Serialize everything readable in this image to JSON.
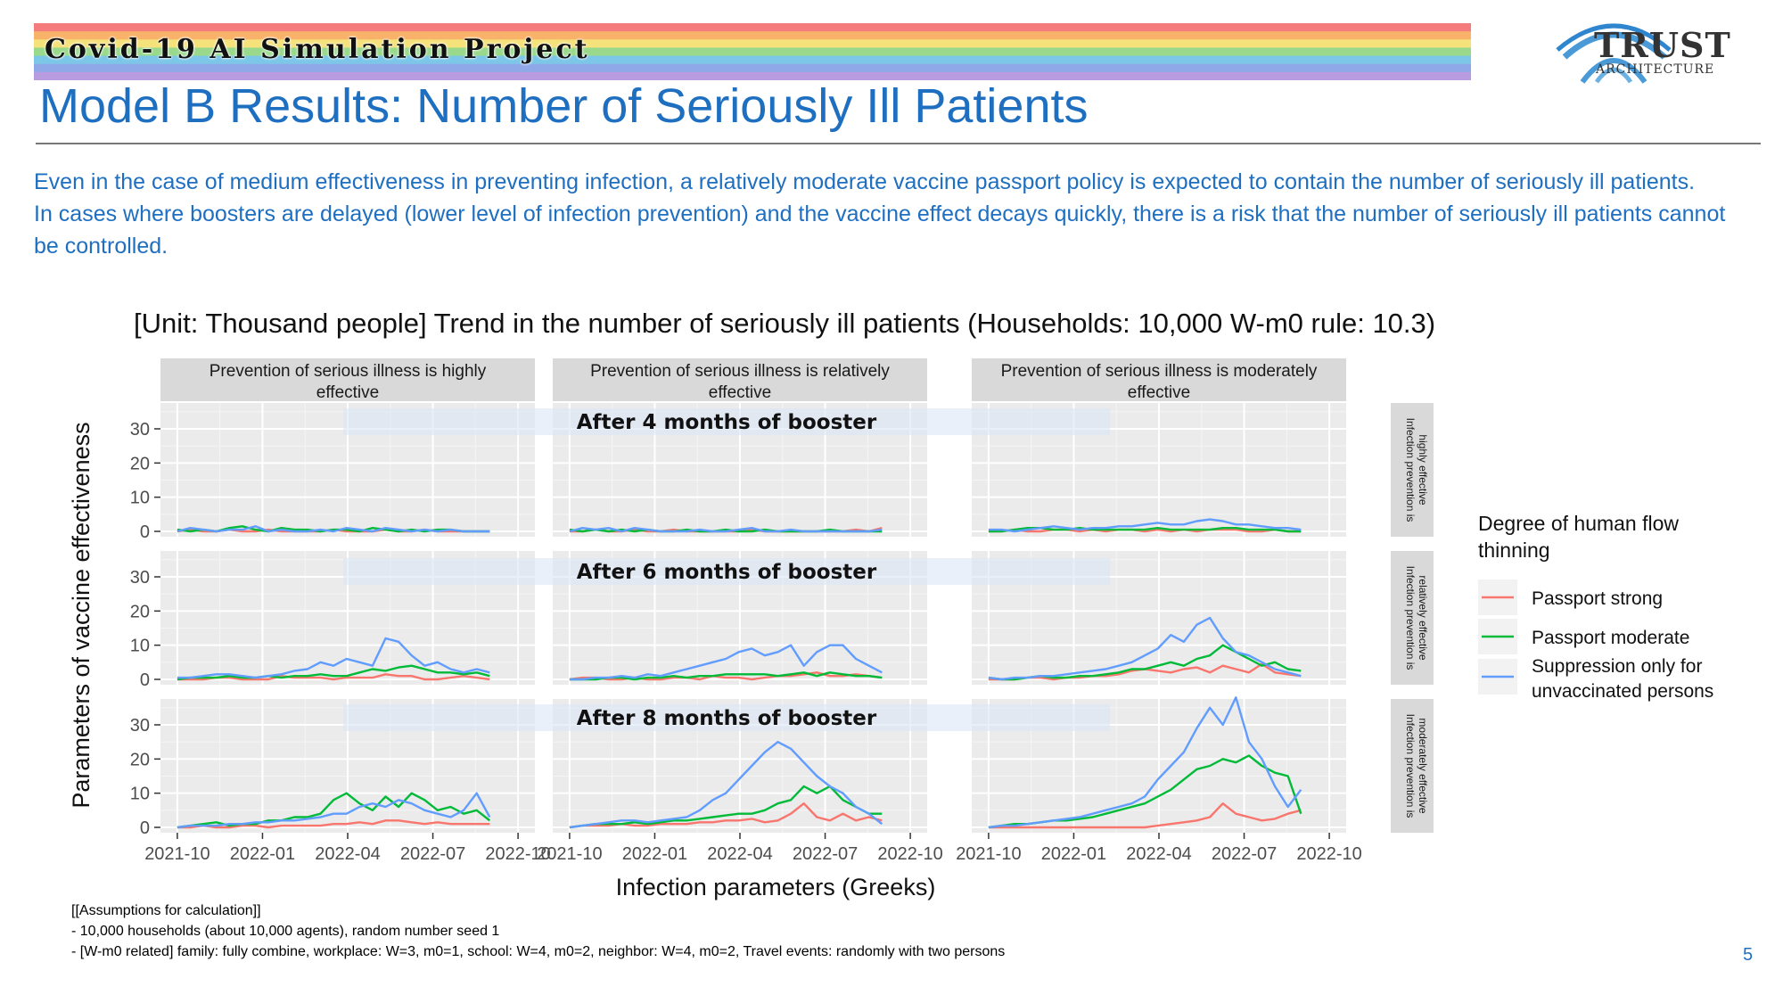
{
  "header": {
    "banner_text": "Covid-19 AI Simulation Project",
    "title": "Model B Results: Number of Seriously Ill Patients",
    "logo_text": "TRUST",
    "logo_subtext": "ARCHITECTURE",
    "logo_icon": "arch-bridge-icon",
    "banner_colors": [
      "#f47c7c",
      "#f8b26a",
      "#f5e27a",
      "#9ad98c",
      "#7cc6e8",
      "#8fa8e8",
      "#b99be0"
    ]
  },
  "intro": {
    "line1": "Even in the case of medium effectiveness in preventing infection, a relatively moderate vaccine passport policy is expected to contain the number of seriously ill patients.",
    "line2": "In cases where boosters are delayed (lower level of infection prevention) and the vaccine effect decays quickly, there is a risk that the number of seriously ill patients cannot be controlled."
  },
  "chart_title": "[Unit: Thousand people] Trend in the number of seriously ill patients (Households: 10,000 W-m0 rule: 10.3)",
  "chart_data": {
    "type": "line",
    "xlabel": "Infection parameters (Greeks)",
    "ylabel": "Parameters of vaccine effectiveness",
    "x_ticks": [
      "2021-10",
      "2022-01",
      "2022-04",
      "2022-07",
      "2022-10"
    ],
    "x_range": [
      "2021-10",
      "2022-10"
    ],
    "ylim": [
      0,
      36
    ],
    "y_ticks": [
      0,
      10,
      20,
      30
    ],
    "column_headers": [
      "Prevention of serious illness is highly effective",
      "Prevention of serious illness is relatively effective",
      "Prevention of serious illness is moderately effective"
    ],
    "row_headers": [
      "Infection prevention is highly effective",
      "Infection prevention is relatively effective",
      "Infection prevention is moderately effective"
    ],
    "row_overlays": [
      "After 4 months of booster",
      "After 6 months of booster",
      "After 8 months of booster"
    ],
    "legend_title": "Degree of human flow thinning",
    "legend_position": "right",
    "grid": true,
    "series": [
      {
        "name": "Passport strong",
        "color": "#f8766d"
      },
      {
        "name": "Passport moderate",
        "color": "#00ba38"
      },
      {
        "name": "Suppression only for unvaccinated persons",
        "color": "#619cff"
      }
    ],
    "panels": [
      [
        {
          "start": "2021-10",
          "end": "2022-09",
          "values": [
            [
              0,
              0.5,
              0,
              0,
              0.5,
              0,
              0,
              0.5,
              0,
              0,
              0,
              0,
              0.5,
              0,
              0,
              0,
              0.5,
              0,
              0,
              0.5,
              0,
              0,
              0,
              0,
              0
            ],
            [
              0.5,
              0,
              0.5,
              0,
              1,
              1.5,
              0.5,
              0,
              1,
              0.5,
              0.5,
              0,
              0.5,
              0.5,
              0,
              1,
              0.5,
              0,
              0.5,
              0,
              0.5,
              0.5,
              0,
              0,
              0
            ],
            [
              0,
              1,
              0.5,
              0,
              0.5,
              0.5,
              1.5,
              0,
              0.5,
              0,
              0,
              0.5,
              0,
              1,
              0.5,
              0,
              1,
              0.5,
              0,
              0.5,
              0,
              0.5,
              0,
              0,
              0
            ]
          ]
        },
        {
          "start": "2021-10",
          "end": "2022-09",
          "values": [
            [
              0,
              0,
              0.5,
              0,
              0,
              0.5,
              0,
              0,
              0.5,
              0,
              0,
              0,
              0,
              0,
              0.5,
              0,
              0,
              0,
              0,
              0,
              0,
              0,
              0.5,
              0,
              1
            ],
            [
              0.5,
              0,
              0.5,
              0,
              0.5,
              0,
              0.5,
              0,
              0,
              0.5,
              0,
              0,
              0.5,
              0,
              0,
              0.5,
              0,
              0,
              0,
              0,
              0.5,
              0,
              0,
              0,
              0
            ],
            [
              0,
              1,
              0.5,
              1,
              0,
              1,
              0.5,
              0,
              0,
              0,
              0.5,
              0,
              0,
              0.5,
              1,
              0,
              0,
              0.5,
              0,
              0,
              0,
              0,
              0,
              0,
              0.5
            ]
          ]
        },
        {
          "start": "2021-10",
          "end": "2022-09",
          "values": [
            [
              0,
              0,
              0.5,
              0,
              0,
              0.5,
              0.5,
              0,
              0.5,
              0,
              0.5,
              0.5,
              0,
              0.5,
              0,
              0.5,
              0,
              0.5,
              0.5,
              0.5,
              0,
              0,
              0.5,
              0,
              0
            ],
            [
              0,
              0,
              0.5,
              1,
              1,
              0.5,
              0.5,
              1,
              0.5,
              0.5,
              0.5,
              0.5,
              0.5,
              1,
              0.5,
              0.5,
              0.5,
              0.5,
              1,
              1,
              0.5,
              0.5,
              0.5,
              0,
              0
            ],
            [
              0.5,
              0.5,
              0,
              0.5,
              1,
              1.5,
              1,
              0.5,
              1,
              1,
              1.5,
              1.5,
              2,
              2.5,
              2,
              2,
              3,
              3.5,
              3,
              2,
              2,
              1.5,
              1,
              1,
              0.5
            ]
          ]
        }
      ],
      [
        {
          "start": "2021-10",
          "end": "2022-09",
          "values": [
            [
              0,
              0,
              0,
              0.5,
              0.5,
              0,
              0,
              0,
              1,
              0.5,
              0.5,
              0.5,
              0,
              0.5,
              0.5,
              0.5,
              1.5,
              1,
              1,
              0,
              0,
              0.5,
              1,
              0.5,
              0
            ],
            [
              0,
              0.5,
              0.5,
              0.5,
              1,
              0.5,
              0.5,
              1,
              0.5,
              1,
              1,
              1.5,
              1,
              1,
              2,
              3,
              2.5,
              3.5,
              4,
              3,
              2,
              2,
              1.5,
              2,
              1
            ],
            [
              0.5,
              0.5,
              1,
              1.5,
              1.5,
              1,
              0.5,
              1,
              1.5,
              2.5,
              3,
              5,
              4,
              6,
              5,
              4,
              12,
              11,
              7,
              4,
              5,
              3,
              2,
              3,
              2
            ]
          ]
        },
        {
          "start": "2021-10",
          "end": "2022-09",
          "values": [
            [
              0,
              0.5,
              0.5,
              0,
              0,
              0.5,
              0,
              0,
              0.5,
              0.5,
              0,
              1,
              0.5,
              0.5,
              0,
              0.5,
              1,
              1,
              1.5,
              2,
              1,
              1,
              1.5,
              1,
              0.5
            ],
            [
              0,
              0,
              0,
              0.5,
              0.5,
              0,
              0.5,
              0.5,
              1,
              0.5,
              1,
              1,
              1.5,
              1.5,
              1.5,
              1.5,
              1,
              1.5,
              2,
              1,
              2,
              1.5,
              1,
              1,
              0.5
            ],
            [
              0,
              0,
              0.5,
              0.5,
              1,
              0.5,
              1.5,
              1,
              2,
              3,
              4,
              5,
              6,
              8,
              9,
              7,
              8,
              10,
              4,
              8,
              10,
              10,
              6,
              4,
              2
            ]
          ]
        },
        {
          "start": "2021-10",
          "end": "2022-09",
          "values": [
            [
              0,
              0,
              0,
              0.5,
              0.5,
              0,
              0.5,
              0.5,
              1,
              1,
              1.5,
              2.5,
              3,
              2.5,
              2,
              3,
              3.5,
              2,
              4,
              3,
              2,
              4.5,
              2,
              1.5,
              1
            ],
            [
              0.5,
              0,
              0,
              0.5,
              1,
              0.5,
              0.5,
              1,
              1,
              1.5,
              2,
              3,
              3,
              4,
              5,
              4,
              6,
              7,
              10,
              8,
              6,
              4,
              5,
              3,
              2.5
            ],
            [
              0.5,
              0,
              0.5,
              0.5,
              1,
              1,
              1.5,
              2,
              2.5,
              3,
              4,
              5,
              7,
              9,
              13,
              11,
              16,
              18,
              12,
              8,
              7,
              5,
              3,
              2,
              1
            ]
          ]
        }
      ],
      [
        {
          "start": "2021-10",
          "end": "2022-09",
          "values": [
            [
              0,
              0,
              0.5,
              0,
              0,
              0.5,
              0.5,
              0,
              0.5,
              0.5,
              0.5,
              0.5,
              1,
              1,
              1.5,
              1,
              2,
              2,
              1.5,
              1,
              1.5,
              1,
              1,
              1,
              1
            ],
            [
              0,
              0.5,
              1,
              1.5,
              0.5,
              1,
              1,
              2,
              2,
              3,
              3,
              4,
              8,
              10,
              7,
              5,
              9,
              6,
              10,
              8,
              5,
              6,
              4,
              5,
              2
            ],
            [
              0,
              0.5,
              0.5,
              0.5,
              1,
              1,
              1.5,
              1.5,
              2,
              2,
              2.5,
              3,
              4,
              4,
              6,
              7,
              6,
              8,
              7,
              5,
              4,
              3,
              5,
              10,
              3
            ]
          ]
        },
        {
          "start": "2021-10",
          "end": "2022-09",
          "values": [
            [
              0,
              0.5,
              0.5,
              0.5,
              1,
              0.5,
              0.5,
              1,
              1,
              1,
              1.5,
              1.5,
              2,
              2,
              2.5,
              1.5,
              2,
              4,
              7,
              3,
              2,
              4,
              2,
              3,
              2
            ],
            [
              0,
              0.5,
              1,
              1,
              1,
              1.5,
              1,
              1.5,
              2,
              2,
              2.5,
              3,
              3.5,
              4,
              4,
              5,
              7,
              8,
              12,
              10,
              12,
              8,
              6,
              4,
              4
            ],
            [
              0,
              0.5,
              1,
              1.5,
              2,
              2,
              1.5,
              2,
              2.5,
              3,
              5,
              8,
              10,
              14,
              18,
              22,
              25,
              23,
              19,
              15,
              12,
              10,
              6,
              4,
              1
            ]
          ]
        },
        {
          "start": "2021-10",
          "end": "2022-09",
          "values": [
            [
              0,
              0,
              0,
              0,
              0,
              0,
              0,
              0,
              0,
              0,
              0,
              0,
              0,
              0.5,
              1,
              1.5,
              2,
              3,
              7,
              4,
              3,
              2,
              2.5,
              4,
              5
            ],
            [
              0,
              0.5,
              1,
              1,
              1.5,
              2,
              2,
              2.5,
              3,
              4,
              5,
              6,
              7,
              9,
              11,
              14,
              17,
              18,
              20,
              19,
              21,
              18,
              16,
              15,
              4
            ],
            [
              0,
              0.5,
              0.5,
              1,
              1.5,
              2,
              2.5,
              3,
              4,
              5,
              6,
              7,
              9,
              14,
              18,
              22,
              29,
              35,
              30,
              38,
              25,
              20,
              12,
              6,
              11
            ]
          ]
        }
      ]
    ]
  },
  "assumptions": {
    "heading": "[[Assumptions for calculation]]",
    "line1": "- 10,000 households (about 10,000 agents), random number seed 1",
    "line2": "- [W-m0 related] family: fully combine, workplace: W=3, m0=1, school: W=4, m0=2, neighbor: W=4, m0=2, Travel events: randomly with two persons"
  },
  "page_number": "5"
}
